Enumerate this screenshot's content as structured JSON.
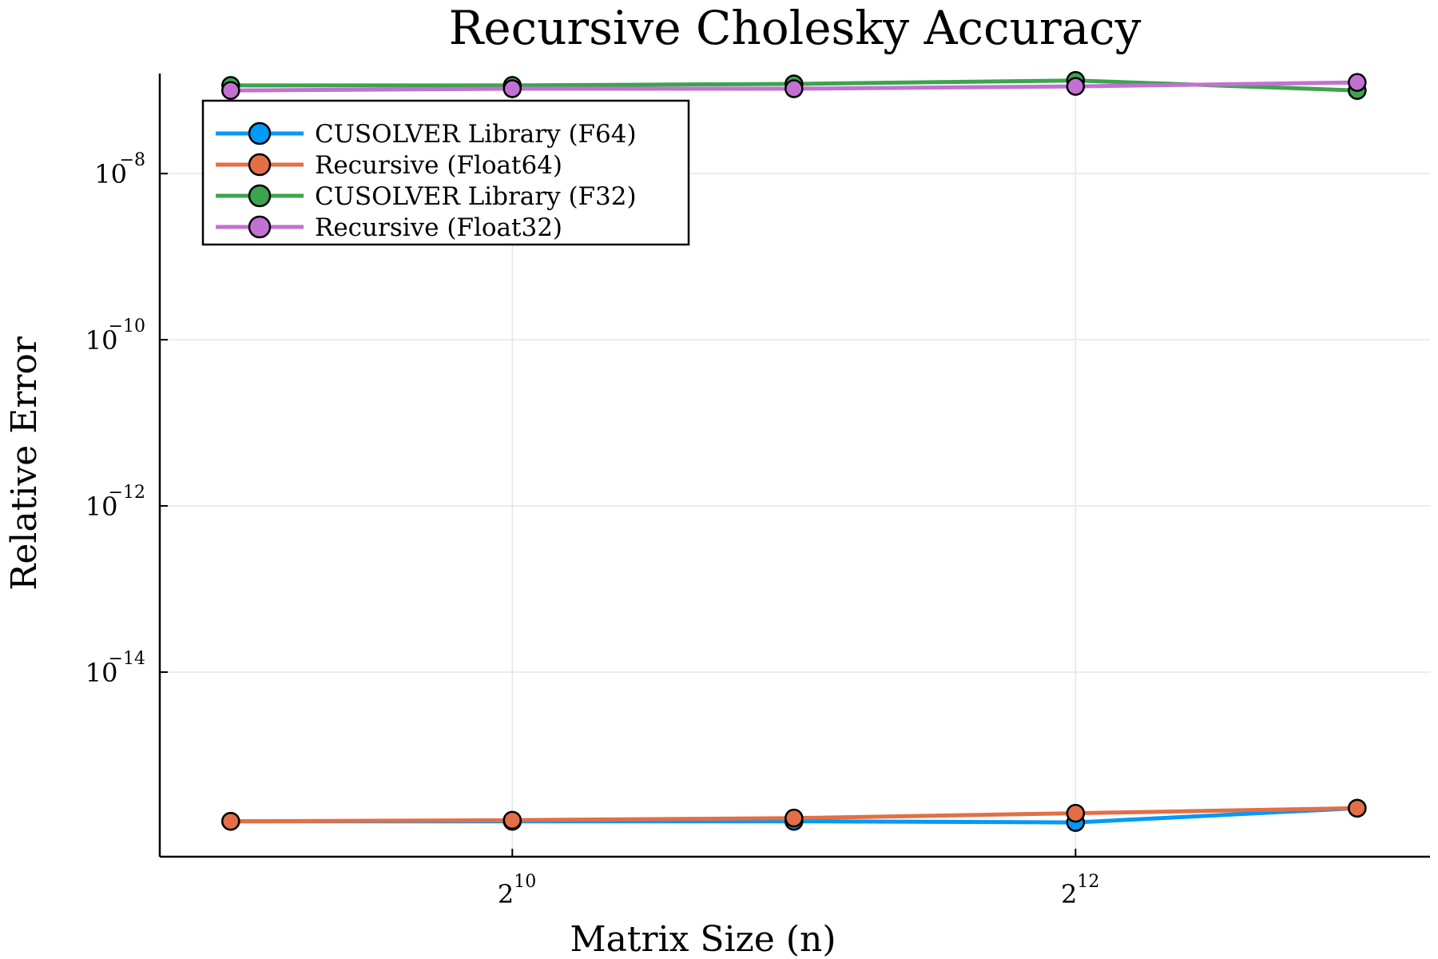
{
  "chart_data": {
    "type": "line",
    "title": "Recursive Cholesky Accuracy",
    "xlabel": "Matrix Size (n)",
    "ylabel": "Relative Error",
    "xscale": "log2",
    "yscale": "log10",
    "x": [
      512,
      1024,
      2048,
      4096,
      8192
    ],
    "xlim": [
      430,
      9800
    ],
    "ylim": [
      6e-17,
      1.6e-07
    ],
    "x_ticks": [
      {
        "value": 1024,
        "base": "2",
        "exp": "10"
      },
      {
        "value": 4096,
        "base": "2",
        "exp": "12"
      }
    ],
    "y_ticks": [
      {
        "value": 1e-08,
        "base": "10",
        "exp": "−8"
      },
      {
        "value": 1e-10,
        "base": "10",
        "exp": "−10"
      },
      {
        "value": 1e-12,
        "base": "10",
        "exp": "−12"
      },
      {
        "value": 1e-14,
        "base": "10",
        "exp": "−14"
      }
    ],
    "grid": true,
    "legend_position": "top-left",
    "series": [
      {
        "name": "CUSOLVER Library (F64)",
        "color": "#009af9",
        "values": [
          1.6e-16,
          1.6e-16,
          1.6e-16,
          1.55e-16,
          2.3e-16
        ]
      },
      {
        "name": "Recursive (Float64)",
        "color": "#e26f46",
        "values": [
          1.6e-16,
          1.65e-16,
          1.75e-16,
          2e-16,
          2.3e-16
        ]
      },
      {
        "name": "CUSOLVER Library (F32)",
        "color": "#3da44d",
        "values": [
          1.15e-07,
          1.15e-07,
          1.2e-07,
          1.32e-07,
          1e-07
        ]
      },
      {
        "name": "Recursive (Float32)",
        "color": "#c271d2",
        "values": [
          1e-07,
          1.05e-07,
          1.05e-07,
          1.12e-07,
          1.25e-07
        ]
      }
    ]
  }
}
